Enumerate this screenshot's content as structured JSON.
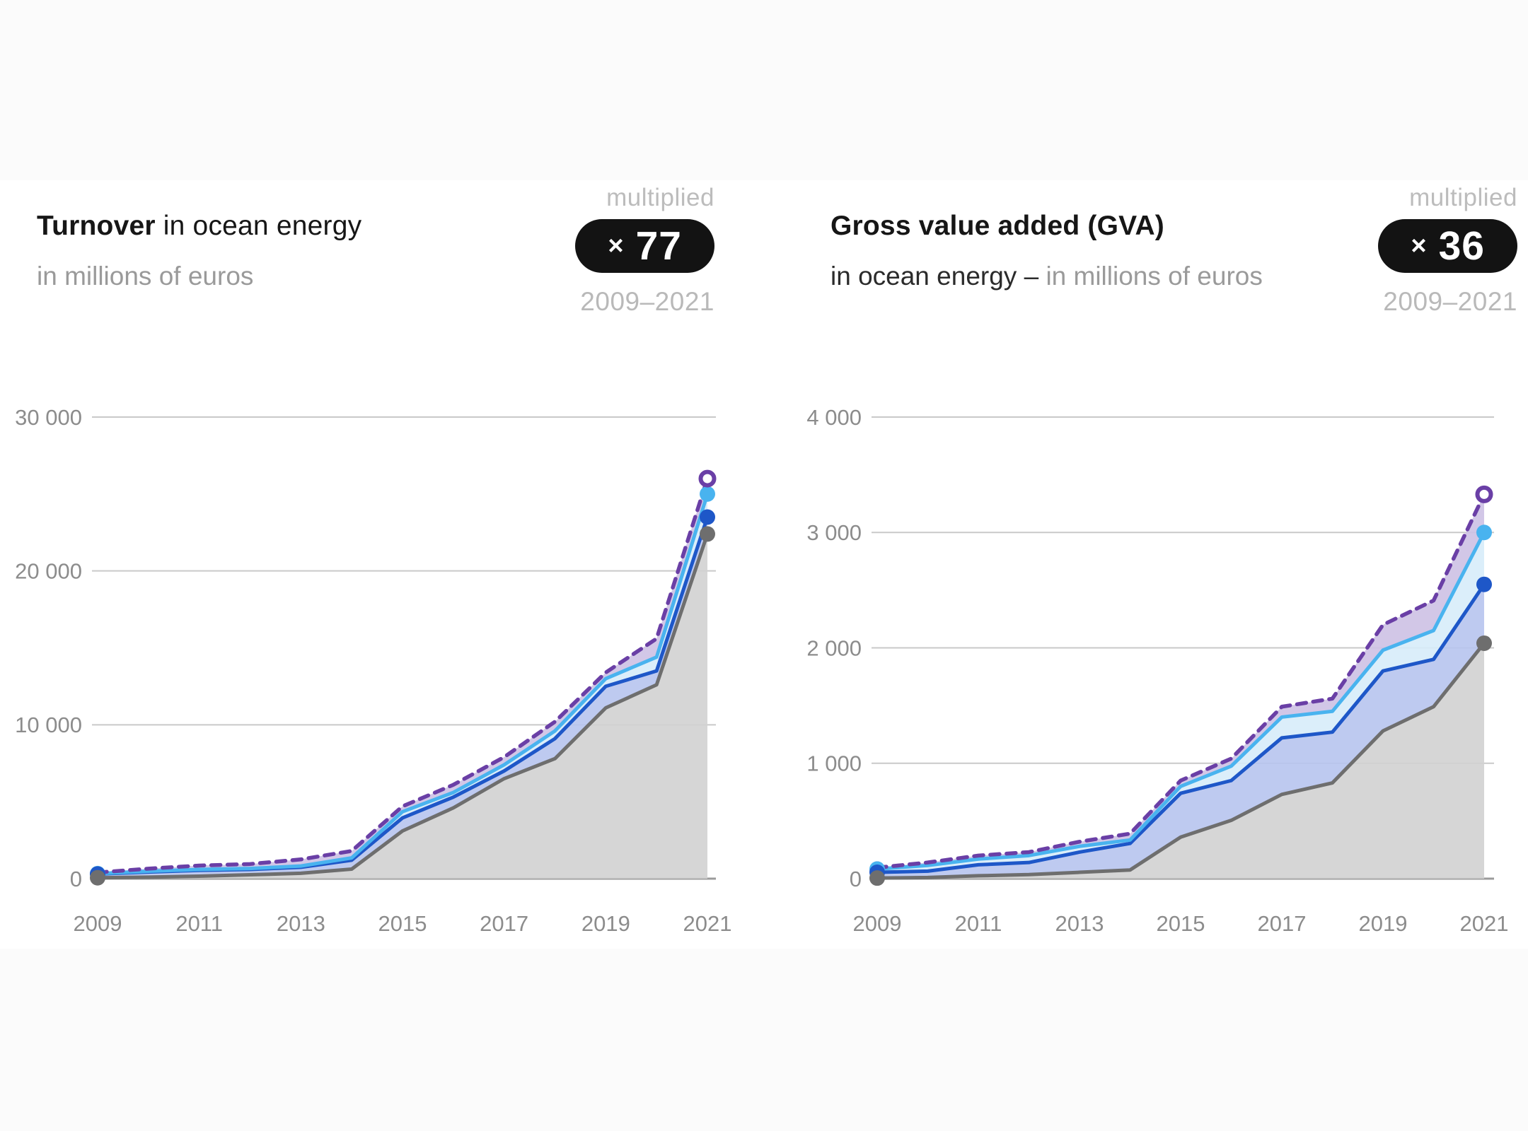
{
  "page": {
    "background": "#ffffff",
    "band_color": "#fbfbfb"
  },
  "chart_data": [
    {
      "type": "area",
      "title_bold": "Turnover",
      "title_regular": " in ocean energy",
      "subtitle_dark": "",
      "subtitle_gray": "in millions of euros",
      "badge_label": "multiplied",
      "badge_times": "×",
      "badge_value": "77",
      "badge_range": "2009–2021",
      "x": [
        2009,
        2010,
        2011,
        2012,
        2013,
        2014,
        2015,
        2016,
        2017,
        2018,
        2019,
        2020,
        2021
      ],
      "x_tick_labels": [
        "2009",
        "2011",
        "2013",
        "2015",
        "2017",
        "2019",
        "2021"
      ],
      "ylim": [
        0,
        30000
      ],
      "y_ticks": [
        0,
        10000,
        20000,
        30000
      ],
      "y_tick_labels": [
        "0",
        "10 000",
        "20 000",
        "30 000"
      ],
      "grid": true,
      "legend": "none",
      "series": [
        {
          "name": "upper-dashed-purple",
          "style": "dashed",
          "color": "#6a3fa6",
          "fill_to_next": "#cdc1e4",
          "end_marker": "ring",
          "values": [
            400,
            650,
            850,
            950,
            1250,
            1800,
            4700,
            6100,
            7900,
            10200,
            13400,
            15600,
            26000
          ]
        },
        {
          "name": "light-blue",
          "style": "solid",
          "color": "#49b3ef",
          "fill_to_next": "#d7ecfa",
          "end_marker": "dot",
          "values": [
            325,
            480,
            600,
            660,
            820,
            1350,
            4350,
            5600,
            7400,
            9600,
            13000,
            14400,
            25000
          ]
        },
        {
          "name": "dark-blue",
          "style": "solid",
          "color": "#1e57c8",
          "fill_to_next": "#b7c4ee",
          "end_marker": "dot",
          "values": [
            300,
            430,
            540,
            600,
            740,
            1200,
            3950,
            5300,
            7000,
            9100,
            12500,
            13500,
            23500
          ]
        },
        {
          "name": "gray",
          "style": "solid",
          "color": "#6e6e6e",
          "fill_to_next": "#d2d2d2",
          "end_marker": "dot",
          "values": [
            60,
            100,
            160,
            250,
            350,
            620,
            3100,
            4600,
            6500,
            7800,
            11100,
            12600,
            22400
          ]
        }
      ]
    },
    {
      "type": "area",
      "title_bold": "Gross value added (GVA)",
      "title_regular": "",
      "subtitle_dark": "in ocean energy – ",
      "subtitle_gray": "in millions of euros",
      "badge_label": "multiplied",
      "badge_times": "×",
      "badge_value": "36",
      "badge_range": "2009–2021",
      "x": [
        2009,
        2010,
        2011,
        2012,
        2013,
        2014,
        2015,
        2016,
        2017,
        2018,
        2019,
        2020,
        2021
      ],
      "x_tick_labels": [
        "2009",
        "2011",
        "2013",
        "2015",
        "2017",
        "2019",
        "2021"
      ],
      "ylim": [
        0,
        4000
      ],
      "y_ticks": [
        0,
        1000,
        2000,
        3000,
        4000
      ],
      "y_tick_labels": [
        "0",
        "1 000",
        "2 000",
        "3 000",
        "4 000"
      ],
      "grid": true,
      "legend": "none",
      "series": [
        {
          "name": "upper-dashed-purple",
          "style": "dashed",
          "color": "#6a3fa6",
          "fill_to_next": "#cdc1e4",
          "end_marker": "ring",
          "values": [
            95,
            140,
            200,
            230,
            320,
            390,
            850,
            1040,
            1490,
            1560,
            2200,
            2410,
            3330
          ]
        },
        {
          "name": "light-blue",
          "style": "solid",
          "color": "#49b3ef",
          "fill_to_next": "#d7ecfa",
          "end_marker": "dot",
          "values": [
            83,
            115,
            170,
            200,
            280,
            335,
            800,
            975,
            1400,
            1450,
            1980,
            2150,
            3000
          ]
        },
        {
          "name": "dark-blue",
          "style": "solid",
          "color": "#1e57c8",
          "fill_to_next": "#b7c4ee",
          "end_marker": "dot",
          "values": [
            55,
            65,
            120,
            140,
            230,
            305,
            740,
            850,
            1220,
            1270,
            1800,
            1900,
            2550
          ]
        },
        {
          "name": "gray",
          "style": "solid",
          "color": "#6e6e6e",
          "fill_to_next": "#d2d2d2",
          "end_marker": "dot",
          "values": [
            5,
            10,
            25,
            35,
            55,
            75,
            360,
            505,
            730,
            830,
            1280,
            1490,
            2040
          ]
        }
      ]
    }
  ],
  "axes_style": {
    "label_color": "#8c8c8c",
    "gridline_color": "#c9c9c9",
    "axisline_color": "#9b9b9b"
  }
}
